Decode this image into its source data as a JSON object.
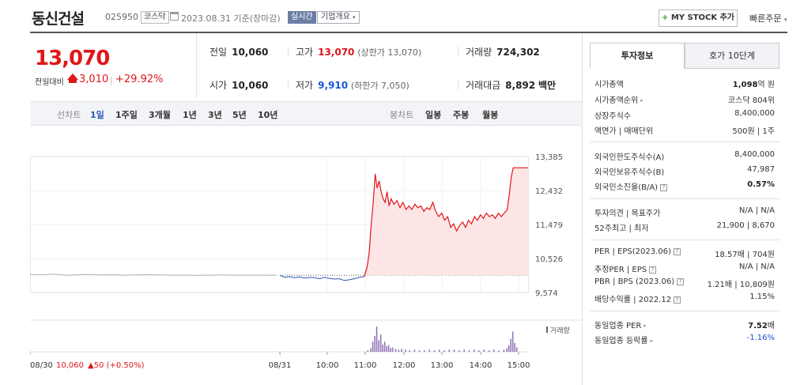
{
  "header": {
    "stock_name": "동신건설",
    "stock_code": "025950",
    "market_badge": "코스닥",
    "date_text": "2023.08.31  기준(장마감)",
    "live_badge": "실시간",
    "corp_summary": "기업개요",
    "mystock_label": "MY STOCK 추가",
    "quick_order": "빠른주문",
    "icons": {
      "calendar": "calendar-icon",
      "plus": "plus-icon",
      "chevron": "chevron-down-icon"
    }
  },
  "price": {
    "current": "13,070",
    "change_label": "전일대비",
    "change_value": "3,010",
    "change_pct": "+29.92%"
  },
  "summary": {
    "prev_label": "전일",
    "prev_value": "10,060",
    "high_label": "고가",
    "high_value": "13,070",
    "upper_limit": "(상한가 13,070)",
    "volume_label": "거래량",
    "volume_value": "724,302",
    "open_label": "시가",
    "open_value": "10,060",
    "low_label": "저가",
    "low_value": "9,910",
    "lower_limit": "(하한가 7,050)",
    "amount_label": "거래대금",
    "amount_value": "8,892",
    "amount_unit": "백만"
  },
  "period_bar": {
    "line_label": "선차트",
    "line_items": [
      "1일",
      "1주일",
      "3개월",
      "1년",
      "3년",
      "5년",
      "10년"
    ],
    "active_line": "1일",
    "candle_label": "봉차트",
    "candle_items": [
      "일봉",
      "주봉",
      "월봉"
    ]
  },
  "chart_data": {
    "type": "line",
    "x_tick_labels": [
      "08/30",
      "08/31",
      "10:00",
      "11:00",
      "12:00",
      "13:00",
      "14:00",
      "15:00"
    ],
    "y_tick_labels": [
      "13,385",
      "12,432",
      "11,479",
      "10,526",
      "9,574"
    ],
    "ylim": [
      9574,
      13385
    ],
    "prev_close": 10060,
    "prev_day_note": "08/30 10,060 ▲50 (+0.50%)",
    "prev_day_price": "10,060",
    "prev_day_change": "▲50 (+0.50%)",
    "prev_day_date": "08/30",
    "volume_label": "거래량",
    "prev_day_series": [
      10080,
      10070,
      10090,
      10060,
      10070,
      10075,
      10065,
      10070,
      10060,
      10068,
      10072,
      10065,
      10060,
      10062,
      10058,
      10060,
      10064,
      10062,
      10060,
      10061,
      10060,
      10060
    ],
    "today_series": [
      {
        "t": 0,
        "v": 10060
      },
      {
        "t": 5,
        "v": 10000
      },
      {
        "t": 10,
        "v": 10020
      },
      {
        "t": 15,
        "v": 9990
      },
      {
        "t": 20,
        "v": 10010
      },
      {
        "t": 25,
        "v": 9980
      },
      {
        "t": 30,
        "v": 10000
      },
      {
        "t": 35,
        "v": 9990
      },
      {
        "t": 40,
        "v": 9960
      },
      {
        "t": 45,
        "v": 10000
      },
      {
        "t": 50,
        "v": 9970
      },
      {
        "t": 55,
        "v": 9950
      },
      {
        "t": 60,
        "v": 9960
      },
      {
        "t": 65,
        "v": 9910
      },
      {
        "t": 70,
        "v": 9930
      },
      {
        "t": 75,
        "v": 9960
      },
      {
        "t": 80,
        "v": 10000
      },
      {
        "t": 85,
        "v": 10020
      },
      {
        "t": 88,
        "v": 10300
      },
      {
        "t": 90,
        "v": 10700
      },
      {
        "t": 92,
        "v": 11500
      },
      {
        "t": 94,
        "v": 12100
      },
      {
        "t": 96,
        "v": 12900
      },
      {
        "t": 98,
        "v": 12500
      },
      {
        "t": 100,
        "v": 12700
      },
      {
        "t": 102,
        "v": 12400
      },
      {
        "t": 104,
        "v": 12200
      },
      {
        "t": 106,
        "v": 12100
      },
      {
        "t": 108,
        "v": 12400
      },
      {
        "t": 110,
        "v": 12000
      },
      {
        "t": 112,
        "v": 12200
      },
      {
        "t": 115,
        "v": 12050
      },
      {
        "t": 118,
        "v": 12150
      },
      {
        "t": 121,
        "v": 11950
      },
      {
        "t": 124,
        "v": 12100
      },
      {
        "t": 127,
        "v": 11900
      },
      {
        "t": 130,
        "v": 12000
      },
      {
        "t": 133,
        "v": 11900
      },
      {
        "t": 136,
        "v": 12050
      },
      {
        "t": 139,
        "v": 11950
      },
      {
        "t": 142,
        "v": 12000
      },
      {
        "t": 145,
        "v": 11850
      },
      {
        "t": 148,
        "v": 11950
      },
      {
        "t": 151,
        "v": 11900
      },
      {
        "t": 154,
        "v": 12100
      },
      {
        "t": 157,
        "v": 11850
      },
      {
        "t": 160,
        "v": 11700
      },
      {
        "t": 163,
        "v": 11800
      },
      {
        "t": 166,
        "v": 11600
      },
      {
        "t": 169,
        "v": 11700
      },
      {
        "t": 172,
        "v": 11400
      },
      {
        "t": 175,
        "v": 11500
      },
      {
        "t": 178,
        "v": 11300
      },
      {
        "t": 181,
        "v": 11450
      },
      {
        "t": 184,
        "v": 11550
      },
      {
        "t": 187,
        "v": 11400
      },
      {
        "t": 190,
        "v": 11600
      },
      {
        "t": 193,
        "v": 11500
      },
      {
        "t": 196,
        "v": 11700
      },
      {
        "t": 199,
        "v": 11600
      },
      {
        "t": 202,
        "v": 11750
      },
      {
        "t": 205,
        "v": 11650
      },
      {
        "t": 208,
        "v": 11800
      },
      {
        "t": 211,
        "v": 11700
      },
      {
        "t": 214,
        "v": 11750
      },
      {
        "t": 217,
        "v": 11650
      },
      {
        "t": 220,
        "v": 11800
      },
      {
        "t": 223,
        "v": 11700
      },
      {
        "t": 226,
        "v": 11800
      },
      {
        "t": 229,
        "v": 11900
      },
      {
        "t": 231,
        "v": 12300
      },
      {
        "t": 233,
        "v": 12800
      },
      {
        "t": 235,
        "v": 13070
      },
      {
        "t": 240,
        "v": 13070
      },
      {
        "t": 250,
        "v": 13070
      }
    ],
    "x_today_range": [
      0,
      250
    ],
    "volume_today": [
      {
        "t": 88,
        "v": 2
      },
      {
        "t": 91,
        "v": 5
      },
      {
        "t": 93,
        "v": 14
      },
      {
        "t": 95,
        "v": 22
      },
      {
        "t": 97,
        "v": 35
      },
      {
        "t": 99,
        "v": 16
      },
      {
        "t": 101,
        "v": 24
      },
      {
        "t": 103,
        "v": 10
      },
      {
        "t": 105,
        "v": 14
      },
      {
        "t": 107,
        "v": 8
      },
      {
        "t": 109,
        "v": 9
      },
      {
        "t": 111,
        "v": 5
      },
      {
        "t": 113,
        "v": 6
      },
      {
        "t": 116,
        "v": 4
      },
      {
        "t": 119,
        "v": 3
      },
      {
        "t": 122,
        "v": 4
      },
      {
        "t": 126,
        "v": 3
      },
      {
        "t": 130,
        "v": 2
      },
      {
        "t": 135,
        "v": 3
      },
      {
        "t": 140,
        "v": 2
      },
      {
        "t": 145,
        "v": 2
      },
      {
        "t": 150,
        "v": 3
      },
      {
        "t": 155,
        "v": 2
      },
      {
        "t": 160,
        "v": 3
      },
      {
        "t": 165,
        "v": 2
      },
      {
        "t": 170,
        "v": 3
      },
      {
        "t": 175,
        "v": 3
      },
      {
        "t": 180,
        "v": 2
      },
      {
        "t": 185,
        "v": 3
      },
      {
        "t": 190,
        "v": 2
      },
      {
        "t": 195,
        "v": 3
      },
      {
        "t": 200,
        "v": 2
      },
      {
        "t": 205,
        "v": 3
      },
      {
        "t": 210,
        "v": 2
      },
      {
        "t": 215,
        "v": 3
      },
      {
        "t": 220,
        "v": 2
      },
      {
        "t": 225,
        "v": 3
      },
      {
        "t": 228,
        "v": 5
      },
      {
        "t": 230,
        "v": 9
      },
      {
        "t": 232,
        "v": 18
      },
      {
        "t": 234,
        "v": 28
      },
      {
        "t": 236,
        "v": 12
      },
      {
        "t": 238,
        "v": 6
      }
    ],
    "volume_max": 35,
    "colors": {
      "up": "#e0161b",
      "down": "#2a59b3",
      "fill": "#fde5e6",
      "prev": "#aaaaaa",
      "volume": "#8d6fb5"
    }
  },
  "side_panel": {
    "tab_invest": "투자정보",
    "tab_hoga": "호가 10단계",
    "market_cap_label": "시가총액",
    "market_cap_value": "1,098",
    "market_cap_unit": "억 원",
    "rank_label": "시가총액순위",
    "rank_value": "코스닥 804위",
    "shares_label": "상장주식수",
    "shares_value": "8,400,000",
    "par_label": "액면가 | 매매단위",
    "par_value": "500원 | 1주",
    "foreign_limit_label": "외국인한도주식수(A)",
    "foreign_limit_value": "8,400,000",
    "foreign_hold_label": "외국인보유주식수(B)",
    "foreign_hold_value": "47,987",
    "foreign_rate_label": "외국인소진율(B/A)",
    "foreign_rate_value": "0.57%",
    "opinion_label": "투자의견 | 목표주가",
    "opinion_value": "N/A | N/A",
    "week52_label": "52주최고 | 최저",
    "week52_value": "21,900 | 8,670",
    "per_label": "PER | EPS(2023.06)",
    "per_value": "18.57배 | 704원",
    "est_per_label": "추정PER | EPS",
    "est_per_value": "N/A | N/A",
    "pbr_label": "PBR | BPS (2023.06)",
    "pbr_value": "1.21배 | 10,809원",
    "div_label": "배당수익률 | 2022.12",
    "div_value": "1.15%",
    "ind_per_label": "동일업종 PER",
    "ind_per_value": "7.52",
    "ind_per_unit": "배",
    "ind_rate_label": "동일업종 등락률",
    "ind_rate_value": "-1.16%",
    "q_mark": "?",
    "arrow": "▸"
  }
}
